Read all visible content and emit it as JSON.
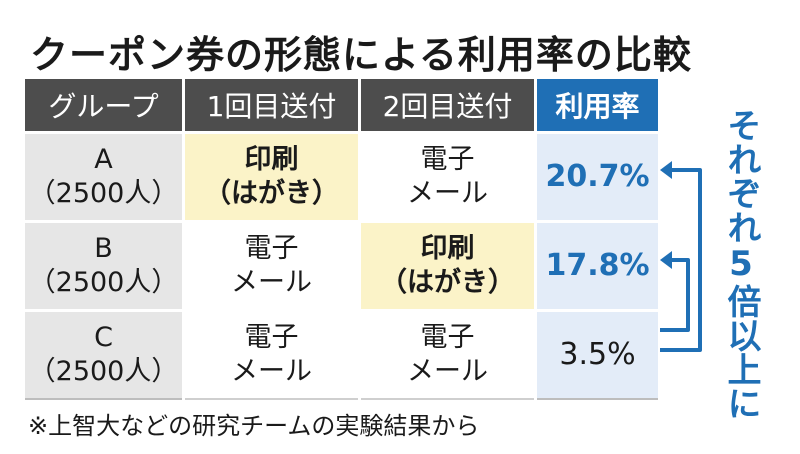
{
  "title": "クーポン券の形態による利用率の比較",
  "chart_data": {
    "type": "table",
    "headers": [
      "グループ",
      "1回目送付",
      "2回目送付",
      "利用率"
    ],
    "rows": [
      {
        "group": "A",
        "size": "（2500人）",
        "first": [
          "印刷",
          "（はがき）"
        ],
        "first_print": true,
        "second": [
          "電子",
          "メール"
        ],
        "second_print": false,
        "rate": "20.7%",
        "rate_value": 20.7,
        "highlight": true
      },
      {
        "group": "B",
        "size": "（2500人）",
        "first": [
          "電子",
          "メール"
        ],
        "first_print": false,
        "second": [
          "印刷",
          "（はがき）"
        ],
        "second_print": true,
        "rate": "17.8%",
        "rate_value": 17.8,
        "highlight": true
      },
      {
        "group": "C",
        "size": "（2500人）",
        "first": [
          "電子",
          "メール"
        ],
        "first_print": false,
        "second": [
          "電子",
          "メール"
        ],
        "second_print": false,
        "rate": "3.5%",
        "rate_value": 3.5,
        "highlight": false
      }
    ],
    "annotation": "それぞれ5倍以上に"
  },
  "footnote": "※上智大などの研究チームの実験結果から",
  "colors": {
    "header_bg": "#4d4d4d",
    "rate_header_bg": "#1f6fb5",
    "print_bg": "#fbf3c8",
    "rate_bg": "#e3ecf8",
    "group_bg": "#e6e6e6",
    "accent": "#1f6fb5"
  }
}
